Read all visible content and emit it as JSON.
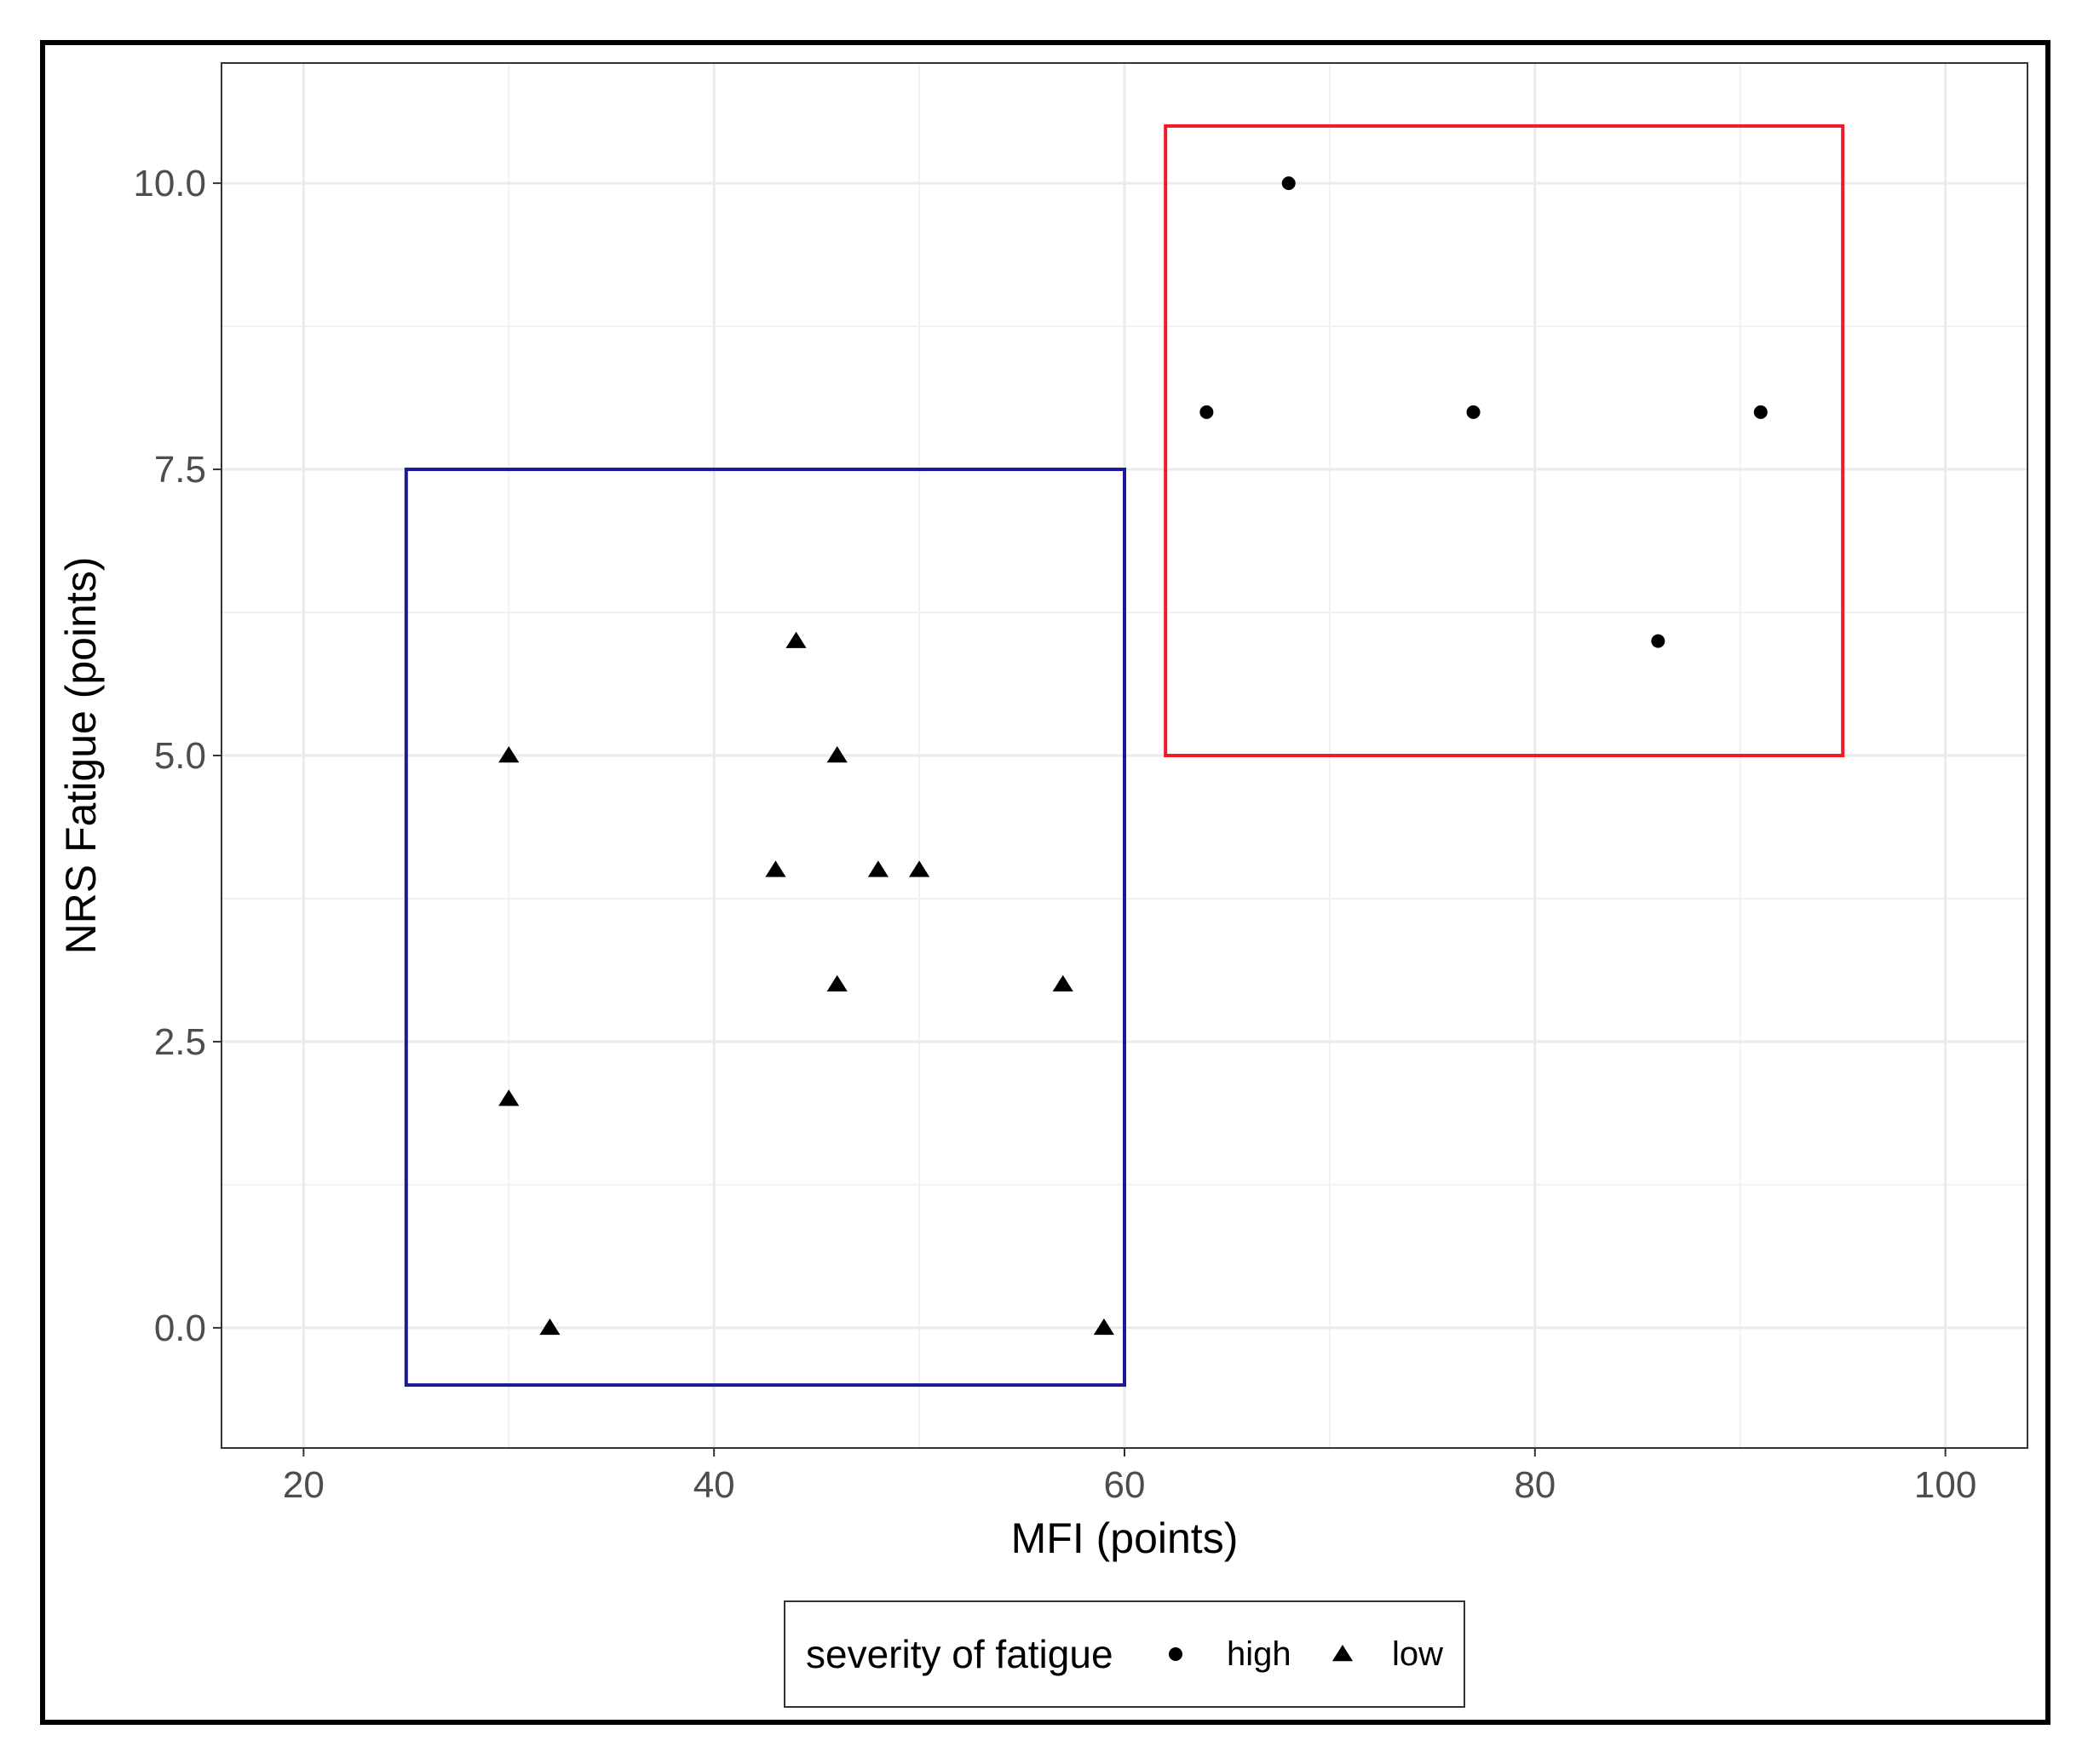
{
  "chart_data": {
    "type": "scatter",
    "title": "",
    "xlabel": "MFI (points)",
    "ylabel": "NRS Fatigue (points)",
    "xlim": [
      16,
      104
    ],
    "ylim": [
      -1.05,
      11.05
    ],
    "x_ticks": [
      20,
      40,
      60,
      80,
      100
    ],
    "x_tick_labels": [
      "20",
      "40",
      "60",
      "80",
      "100"
    ],
    "y_ticks": [
      0,
      2.5,
      5,
      7.5,
      10
    ],
    "y_tick_labels": [
      "0.0",
      "2.5",
      "5.0",
      "7.5",
      "10.0"
    ],
    "grid": true,
    "legend": {
      "title": "severity of fatigue",
      "position": "bottom"
    },
    "series": [
      {
        "name": "high",
        "marker": "circle",
        "color": "#000000",
        "points": [
          {
            "x": 64,
            "y": 8
          },
          {
            "x": 68,
            "y": 10
          },
          {
            "x": 77,
            "y": 8
          },
          {
            "x": 86,
            "y": 6
          },
          {
            "x": 91,
            "y": 8
          }
        ]
      },
      {
        "name": "low",
        "marker": "triangle",
        "color": "#000000",
        "points": [
          {
            "x": 30,
            "y": 5
          },
          {
            "x": 30,
            "y": 2
          },
          {
            "x": 32,
            "y": 0
          },
          {
            "x": 43,
            "y": 4
          },
          {
            "x": 44,
            "y": 6
          },
          {
            "x": 46,
            "y": 5
          },
          {
            "x": 46,
            "y": 3
          },
          {
            "x": 48,
            "y": 4
          },
          {
            "x": 50,
            "y": 4
          },
          {
            "x": 57,
            "y": 3
          },
          {
            "x": 59,
            "y": 0
          }
        ]
      }
    ],
    "annotations": [
      {
        "type": "rect",
        "color": "#1a1a99",
        "x_range": [
          25,
          60
        ],
        "y_range": [
          -0.5,
          7.5
        ]
      },
      {
        "type": "rect",
        "color": "#ee1c25",
        "x_range": [
          62,
          95
        ],
        "y_range": [
          5,
          10.5
        ]
      }
    ]
  }
}
